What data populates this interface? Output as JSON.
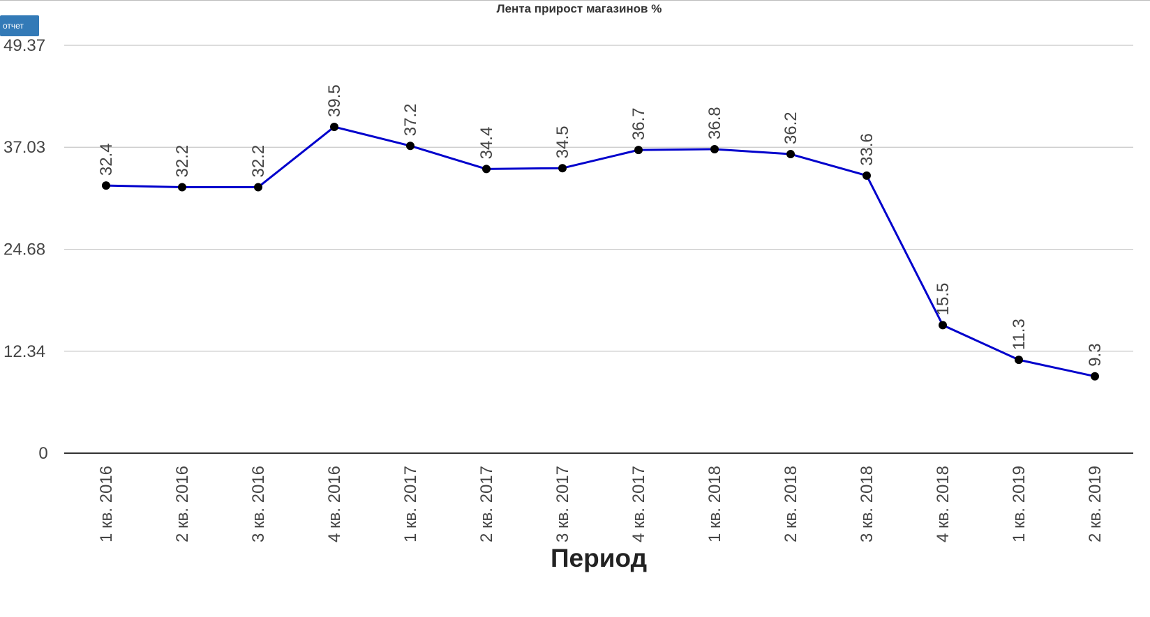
{
  "toolbar": {
    "report_label": "отчет"
  },
  "chart_data": {
    "type": "line",
    "title": "Лента прирост магазинов %",
    "xlabel": "Период",
    "ylabel": "",
    "categories": [
      "1 кв. 2016",
      "2 кв. 2016",
      "3 кв. 2016",
      "4 кв. 2016",
      "1 кв. 2017",
      "2 кв. 2017",
      "3 кв. 2017",
      "4 кв. 2017",
      "1 кв. 2018",
      "2 кв. 2018",
      "3 кв. 2018",
      "4 кв. 2018",
      "1 кв. 2019",
      "2 кв. 2019"
    ],
    "series": [
      {
        "values": [
          32.4,
          32.2,
          32.2,
          39.5,
          37.2,
          34.4,
          34.5,
          36.7,
          36.8,
          36.2,
          33.6,
          15.5,
          11.3,
          9.3
        ],
        "color": "#0000cc",
        "marker_color": "#000000"
      }
    ],
    "yticks": [
      "0",
      "12.34",
      "24.68",
      "37.03",
      "49.37"
    ],
    "ylim": [
      0,
      49.37
    ],
    "grid": true,
    "data_labels": true,
    "legend": "none"
  }
}
